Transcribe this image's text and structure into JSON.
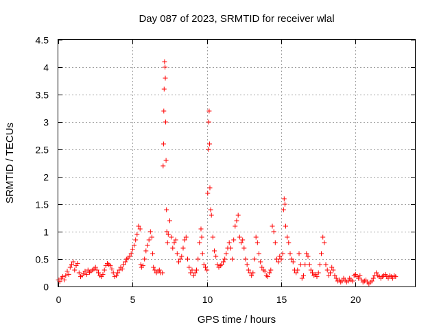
{
  "chart_data": {
    "type": "scatter",
    "title": "Day 087 of 2023, SRMTID for receiver wlal",
    "xlabel": "GPS time / hours",
    "ylabel": "SRMTID / TECUs",
    "xlim": [
      0,
      24
    ],
    "ylim": [
      0,
      4.5
    ],
    "grid": true,
    "marker": "+",
    "color": "#ff0000",
    "xticks": [
      0,
      5,
      10,
      15,
      20
    ],
    "xtick_labels": [
      "0",
      "5",
      "10",
      "15",
      "20"
    ],
    "yticks": [
      0,
      0.5,
      1,
      1.5,
      2,
      2.5,
      3,
      3.5,
      4,
      4.5
    ],
    "ytick_labels": [
      "0",
      "0.5",
      "1",
      "1.5",
      "2",
      "2.5",
      "3",
      "3.5",
      "4",
      "4.5"
    ],
    "series": [
      {
        "name": "SRMTID",
        "points": [
          [
            0.0,
            0.12
          ],
          [
            0.1,
            0.09
          ],
          [
            0.2,
            0.15
          ],
          [
            0.3,
            0.18
          ],
          [
            0.4,
            0.12
          ],
          [
            0.5,
            0.2
          ],
          [
            0.6,
            0.28
          ],
          [
            0.7,
            0.22
          ],
          [
            0.8,
            0.35
          ],
          [
            0.9,
            0.4
          ],
          [
            1.0,
            0.45
          ],
          [
            1.1,
            0.3
          ],
          [
            1.2,
            0.38
          ],
          [
            1.3,
            0.42
          ],
          [
            1.4,
            0.25
          ],
          [
            1.5,
            0.18
          ],
          [
            1.6,
            0.2
          ],
          [
            1.7,
            0.24
          ],
          [
            1.8,
            0.28
          ],
          [
            1.9,
            0.22
          ],
          [
            2.0,
            0.3
          ],
          [
            2.1,
            0.26
          ],
          [
            2.2,
            0.28
          ],
          [
            2.3,
            0.3
          ],
          [
            2.4,
            0.32
          ],
          [
            2.5,
            0.35
          ],
          [
            2.6,
            0.3
          ],
          [
            2.7,
            0.25
          ],
          [
            2.8,
            0.2
          ],
          [
            2.9,
            0.18
          ],
          [
            3.0,
            0.22
          ],
          [
            3.1,
            0.3
          ],
          [
            3.2,
            0.38
          ],
          [
            3.3,
            0.42
          ],
          [
            3.4,
            0.4
          ],
          [
            3.5,
            0.38
          ],
          [
            3.6,
            0.32
          ],
          [
            3.7,
            0.25
          ],
          [
            3.8,
            0.18
          ],
          [
            3.9,
            0.2
          ],
          [
            4.0,
            0.25
          ],
          [
            4.1,
            0.3
          ],
          [
            4.2,
            0.35
          ],
          [
            4.3,
            0.32
          ],
          [
            4.4,
            0.4
          ],
          [
            4.5,
            0.45
          ],
          [
            4.6,
            0.5
          ],
          [
            4.7,
            0.52
          ],
          [
            4.8,
            0.55
          ],
          [
            4.9,
            0.6
          ],
          [
            5.0,
            0.68
          ],
          [
            5.1,
            0.75
          ],
          [
            5.2,
            0.85
          ],
          [
            5.3,
            0.95
          ],
          [
            5.4,
            1.1
          ],
          [
            5.5,
            1.05
          ],
          [
            5.55,
            0.4
          ],
          [
            5.6,
            0.35
          ],
          [
            5.7,
            0.38
          ],
          [
            5.8,
            0.5
          ],
          [
            5.9,
            0.65
          ],
          [
            6.0,
            0.75
          ],
          [
            6.1,
            0.85
          ],
          [
            6.2,
            1.0
          ],
          [
            6.3,
            0.9
          ],
          [
            6.35,
            0.6
          ],
          [
            6.4,
            0.35
          ],
          [
            6.5,
            0.3
          ],
          [
            6.6,
            0.25
          ],
          [
            6.7,
            0.28
          ],
          [
            6.8,
            0.3
          ],
          [
            6.9,
            0.25
          ],
          [
            7.0,
            0.25
          ],
          [
            7.05,
            2.2
          ],
          [
            7.08,
            2.6
          ],
          [
            7.1,
            3.2
          ],
          [
            7.12,
            3.6
          ],
          [
            7.15,
            4.1
          ],
          [
            7.18,
            4.0
          ],
          [
            7.2,
            3.8
          ],
          [
            7.22,
            3.0
          ],
          [
            7.25,
            2.3
          ],
          [
            7.28,
            1.4
          ],
          [
            7.3,
            1.0
          ],
          [
            7.35,
            0.8
          ],
          [
            7.4,
            0.95
          ],
          [
            7.5,
            1.2
          ],
          [
            7.6,
            0.9
          ],
          [
            7.7,
            0.7
          ],
          [
            7.8,
            0.8
          ],
          [
            7.9,
            0.85
          ],
          [
            8.0,
            0.6
          ],
          [
            8.1,
            0.45
          ],
          [
            8.2,
            0.5
          ],
          [
            8.3,
            0.55
          ],
          [
            8.4,
            0.7
          ],
          [
            8.5,
            0.85
          ],
          [
            8.6,
            0.9
          ],
          [
            8.7,
            0.5
          ],
          [
            8.8,
            0.35
          ],
          [
            8.9,
            0.25
          ],
          [
            9.0,
            0.3
          ],
          [
            9.1,
            0.2
          ],
          [
            9.2,
            0.25
          ],
          [
            9.3,
            0.3
          ],
          [
            9.4,
            0.5
          ],
          [
            9.5,
            0.8
          ],
          [
            9.6,
            1.05
          ],
          [
            9.65,
            0.9
          ],
          [
            9.7,
            0.6
          ],
          [
            9.8,
            0.4
          ],
          [
            9.9,
            0.35
          ],
          [
            10.0,
            0.3
          ],
          [
            10.05,
            1.7
          ],
          [
            10.1,
            2.5
          ],
          [
            10.12,
            3.0
          ],
          [
            10.15,
            3.2
          ],
          [
            10.18,
            2.6
          ],
          [
            10.2,
            1.8
          ],
          [
            10.25,
            1.4
          ],
          [
            10.3,
            1.3
          ],
          [
            10.4,
            0.9
          ],
          [
            10.5,
            0.65
          ],
          [
            10.6,
            0.55
          ],
          [
            10.7,
            0.4
          ],
          [
            10.8,
            0.35
          ],
          [
            10.9,
            0.38
          ],
          [
            11.0,
            0.4
          ],
          [
            11.1,
            0.45
          ],
          [
            11.2,
            0.5
          ],
          [
            11.3,
            0.6
          ],
          [
            11.4,
            0.7
          ],
          [
            11.5,
            0.8
          ],
          [
            11.6,
            0.7
          ],
          [
            11.7,
            0.5
          ],
          [
            11.8,
            0.85
          ],
          [
            11.9,
            1.1
          ],
          [
            12.0,
            1.2
          ],
          [
            12.1,
            1.3
          ],
          [
            12.2,
            0.9
          ],
          [
            12.3,
            0.8
          ],
          [
            12.4,
            0.85
          ],
          [
            12.5,
            0.7
          ],
          [
            12.6,
            0.5
          ],
          [
            12.7,
            0.4
          ],
          [
            12.8,
            0.3
          ],
          [
            12.9,
            0.25
          ],
          [
            13.0,
            0.2
          ],
          [
            13.1,
            0.25
          ],
          [
            13.2,
            0.5
          ],
          [
            13.3,
            0.9
          ],
          [
            13.4,
            0.8
          ],
          [
            13.5,
            0.6
          ],
          [
            13.6,
            0.45
          ],
          [
            13.7,
            0.35
          ],
          [
            13.8,
            0.3
          ],
          [
            13.9,
            0.28
          ],
          [
            14.0,
            0.2
          ],
          [
            14.1,
            0.18
          ],
          [
            14.2,
            0.25
          ],
          [
            14.3,
            0.3
          ],
          [
            14.4,
            1.1
          ],
          [
            14.5,
            1.0
          ],
          [
            14.6,
            0.8
          ],
          [
            14.7,
            0.5
          ],
          [
            14.8,
            0.45
          ],
          [
            14.9,
            0.55
          ],
          [
            15.0,
            0.5
          ],
          [
            15.1,
            0.6
          ],
          [
            15.15,
            1.4
          ],
          [
            15.2,
            1.6
          ],
          [
            15.25,
            1.5
          ],
          [
            15.3,
            1.1
          ],
          [
            15.4,
            0.9
          ],
          [
            15.5,
            0.8
          ],
          [
            15.6,
            0.6
          ],
          [
            15.7,
            0.5
          ],
          [
            15.8,
            0.45
          ],
          [
            15.9,
            0.3
          ],
          [
            16.0,
            0.25
          ],
          [
            16.1,
            0.3
          ],
          [
            16.2,
            0.6
          ],
          [
            16.3,
            0.4
          ],
          [
            16.4,
            0.15
          ],
          [
            16.5,
            0.2
          ],
          [
            16.6,
            0.4
          ],
          [
            16.7,
            0.6
          ],
          [
            16.8,
            0.55
          ],
          [
            16.9,
            0.4
          ],
          [
            17.0,
            0.3
          ],
          [
            17.1,
            0.25
          ],
          [
            17.2,
            0.2
          ],
          [
            17.3,
            0.22
          ],
          [
            17.4,
            0.18
          ],
          [
            17.5,
            0.25
          ],
          [
            17.6,
            0.4
          ],
          [
            17.7,
            0.6
          ],
          [
            17.8,
            0.9
          ],
          [
            17.9,
            0.8
          ],
          [
            18.0,
            0.4
          ],
          [
            18.1,
            0.3
          ],
          [
            18.2,
            0.2
          ],
          [
            18.3,
            0.25
          ],
          [
            18.4,
            0.35
          ],
          [
            18.5,
            0.3
          ],
          [
            18.6,
            0.2
          ],
          [
            18.7,
            0.15
          ],
          [
            18.8,
            0.1
          ],
          [
            18.9,
            0.12
          ],
          [
            19.0,
            0.08
          ],
          [
            19.1,
            0.1
          ],
          [
            19.2,
            0.15
          ],
          [
            19.3,
            0.12
          ],
          [
            19.4,
            0.08
          ],
          [
            19.5,
            0.1
          ],
          [
            19.6,
            0.15
          ],
          [
            19.7,
            0.12
          ],
          [
            19.8,
            0.1
          ],
          [
            19.9,
            0.2
          ],
          [
            20.0,
            0.22
          ],
          [
            20.1,
            0.18
          ],
          [
            20.2,
            0.15
          ],
          [
            20.3,
            0.2
          ],
          [
            20.4,
            0.12
          ],
          [
            20.5,
            0.08
          ],
          [
            20.6,
            0.1
          ],
          [
            20.7,
            0.12
          ],
          [
            20.8,
            0.08
          ],
          [
            20.9,
            0.05
          ],
          [
            21.0,
            0.08
          ],
          [
            21.1,
            0.1
          ],
          [
            21.2,
            0.15
          ],
          [
            21.3,
            0.2
          ],
          [
            21.4,
            0.25
          ],
          [
            21.5,
            0.2
          ],
          [
            21.6,
            0.18
          ],
          [
            21.7,
            0.15
          ],
          [
            21.8,
            0.18
          ],
          [
            21.9,
            0.2
          ],
          [
            22.0,
            0.22
          ],
          [
            22.1,
            0.18
          ],
          [
            22.2,
            0.15
          ],
          [
            22.3,
            0.2
          ],
          [
            22.4,
            0.18
          ],
          [
            22.5,
            0.15
          ],
          [
            22.6,
            0.2
          ],
          [
            22.7,
            0.18
          ]
        ]
      }
    ]
  }
}
